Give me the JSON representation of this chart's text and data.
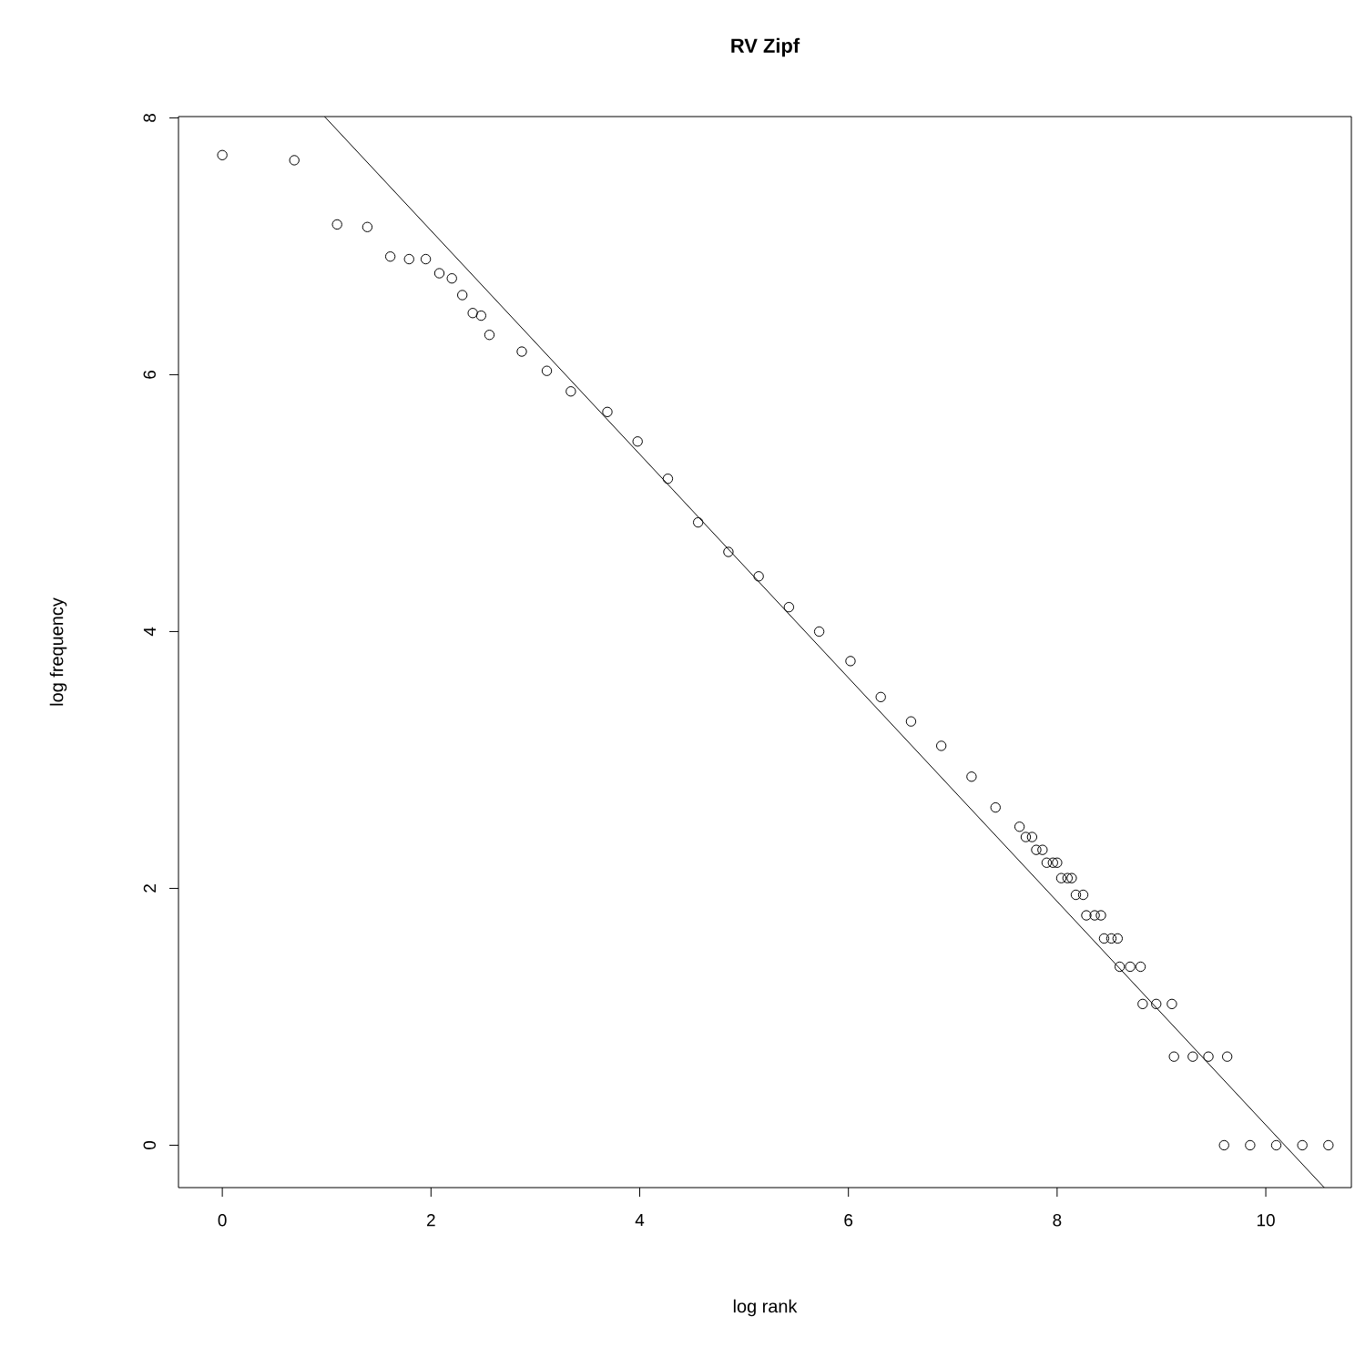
{
  "chart_data": {
    "type": "scatter",
    "title": "RV Zipf",
    "xlabel": "log rank",
    "ylabel": "log frequency",
    "xlim": [
      -0.42,
      10.82
    ],
    "ylim": [
      -0.33,
      8.01
    ],
    "xticks": [
      0,
      2,
      4,
      6,
      8,
      10
    ],
    "yticks": [
      0,
      2,
      4,
      6,
      8
    ],
    "marker": "circle",
    "grid": false,
    "series": [
      {
        "type": "scatter",
        "color": "#000000",
        "x": [
          0,
          0.69,
          1.1,
          1.39,
          1.61,
          1.79,
          1.95,
          2.08,
          2.2,
          2.3,
          2.4,
          2.48,
          2.56,
          2.87,
          3.11,
          3.34,
          3.69,
          3.98,
          4.27,
          4.56,
          4.85,
          5.14,
          5.43,
          5.72,
          6.02,
          6.31,
          6.6,
          6.89,
          7.18,
          7.41,
          7.64,
          7.7,
          7.76,
          7.8,
          7.86,
          7.9,
          7.96,
          8.0,
          8.04,
          8.1,
          8.14,
          8.18,
          8.25,
          8.28,
          8.36,
          8.42,
          8.45,
          8.52,
          8.58,
          8.6,
          8.7,
          8.8,
          8.82,
          8.95,
          9.1,
          9.12,
          9.3,
          9.45,
          9.63,
          9.6,
          9.85,
          10.1,
          10.35,
          10.6
        ],
        "values": [
          7.71,
          7.67,
          7.17,
          7.15,
          6.92,
          6.9,
          6.9,
          6.79,
          6.75,
          6.62,
          6.48,
          6.46,
          6.31,
          6.18,
          6.03,
          5.87,
          5.71,
          5.48,
          5.19,
          4.85,
          4.62,
          4.43,
          4.19,
          4.0,
          3.77,
          3.49,
          3.3,
          3.11,
          2.87,
          2.63,
          2.48,
          2.4,
          2.4,
          2.3,
          2.3,
          2.2,
          2.2,
          2.2,
          2.08,
          2.08,
          2.08,
          1.95,
          1.95,
          1.79,
          1.79,
          1.79,
          1.61,
          1.61,
          1.61,
          1.39,
          1.39,
          1.39,
          1.1,
          1.1,
          1.1,
          0.69,
          0.69,
          0.69,
          0.69,
          0,
          0,
          0,
          0,
          0
        ]
      },
      {
        "type": "line",
        "color": "#000000",
        "marker": "none",
        "x": [
          0.98,
          10.56
        ],
        "values": [
          8.01,
          -0.33
        ]
      }
    ]
  }
}
